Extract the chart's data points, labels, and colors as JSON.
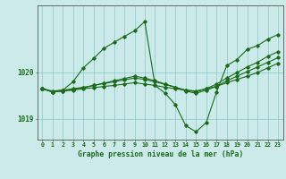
{
  "title": "Graphe pression niveau de la mer (hPa)",
  "bg_color": "#cceaea",
  "line_color": "#1a6b1a",
  "grid_color": "#88c8c8",
  "x_labels": [
    "0",
    "1",
    "2",
    "3",
    "4",
    "5",
    "6",
    "7",
    "8",
    "9",
    "10",
    "11",
    "12",
    "13",
    "14",
    "15",
    "16",
    "17",
    "18",
    "19",
    "20",
    "21",
    "22",
    "23"
  ],
  "ylim": [
    1018.55,
    1021.45
  ],
  "yticks": [
    1019,
    1020
  ],
  "series": {
    "line_flat1": [
      1019.65,
      1019.58,
      1019.6,
      1019.62,
      1019.65,
      1019.67,
      1019.7,
      1019.72,
      1019.75,
      1019.78,
      1019.75,
      1019.72,
      1019.68,
      1019.65,
      1019.62,
      1019.6,
      1019.65,
      1019.7,
      1019.78,
      1019.85,
      1019.92,
      1020.0,
      1020.1,
      1020.2
    ],
    "line_flat2": [
      1019.65,
      1019.58,
      1019.6,
      1019.63,
      1019.67,
      1019.72,
      1019.77,
      1019.82,
      1019.87,
      1019.92,
      1019.88,
      1019.82,
      1019.75,
      1019.68,
      1019.6,
      1019.55,
      1019.62,
      1019.7,
      1019.82,
      1019.92,
      1020.02,
      1020.12,
      1020.22,
      1020.32
    ],
    "line_diag": [
      1019.65,
      1019.6,
      1019.62,
      1019.65,
      1019.68,
      1019.72,
      1019.76,
      1019.8,
      1019.84,
      1019.88,
      1019.85,
      1019.8,
      1019.74,
      1019.68,
      1019.62,
      1019.58,
      1019.65,
      1019.75,
      1019.88,
      1020.0,
      1020.12,
      1020.22,
      1020.35,
      1020.45
    ],
    "line_peak": [
      1019.65,
      1019.58,
      1019.62,
      1019.8,
      1020.1,
      1020.3,
      1020.52,
      1020.65,
      1020.78,
      1020.9,
      1021.1,
      1019.72,
      1019.55,
      1019.3,
      1018.85,
      1018.72,
      1018.92,
      1019.58,
      1020.15,
      1020.28,
      1020.5,
      1020.58,
      1020.72,
      1020.82
    ]
  }
}
